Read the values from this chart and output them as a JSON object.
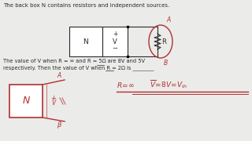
{
  "bg_color": "#ebebea",
  "text_color": "#2a2a2a",
  "red_color": "#b03030",
  "line1": "The back box N contains resistors and independent sources.",
  "line2": "The value of V when R = ∞ and R = 5Ω are 8V and 5V",
  "line3": "respectively. Then the value of V when R = 2Ω is ________",
  "circuit_n_label": "N",
  "circuit_v_label": "V",
  "circuit_r_label": "R",
  "hand_n_label": "N"
}
